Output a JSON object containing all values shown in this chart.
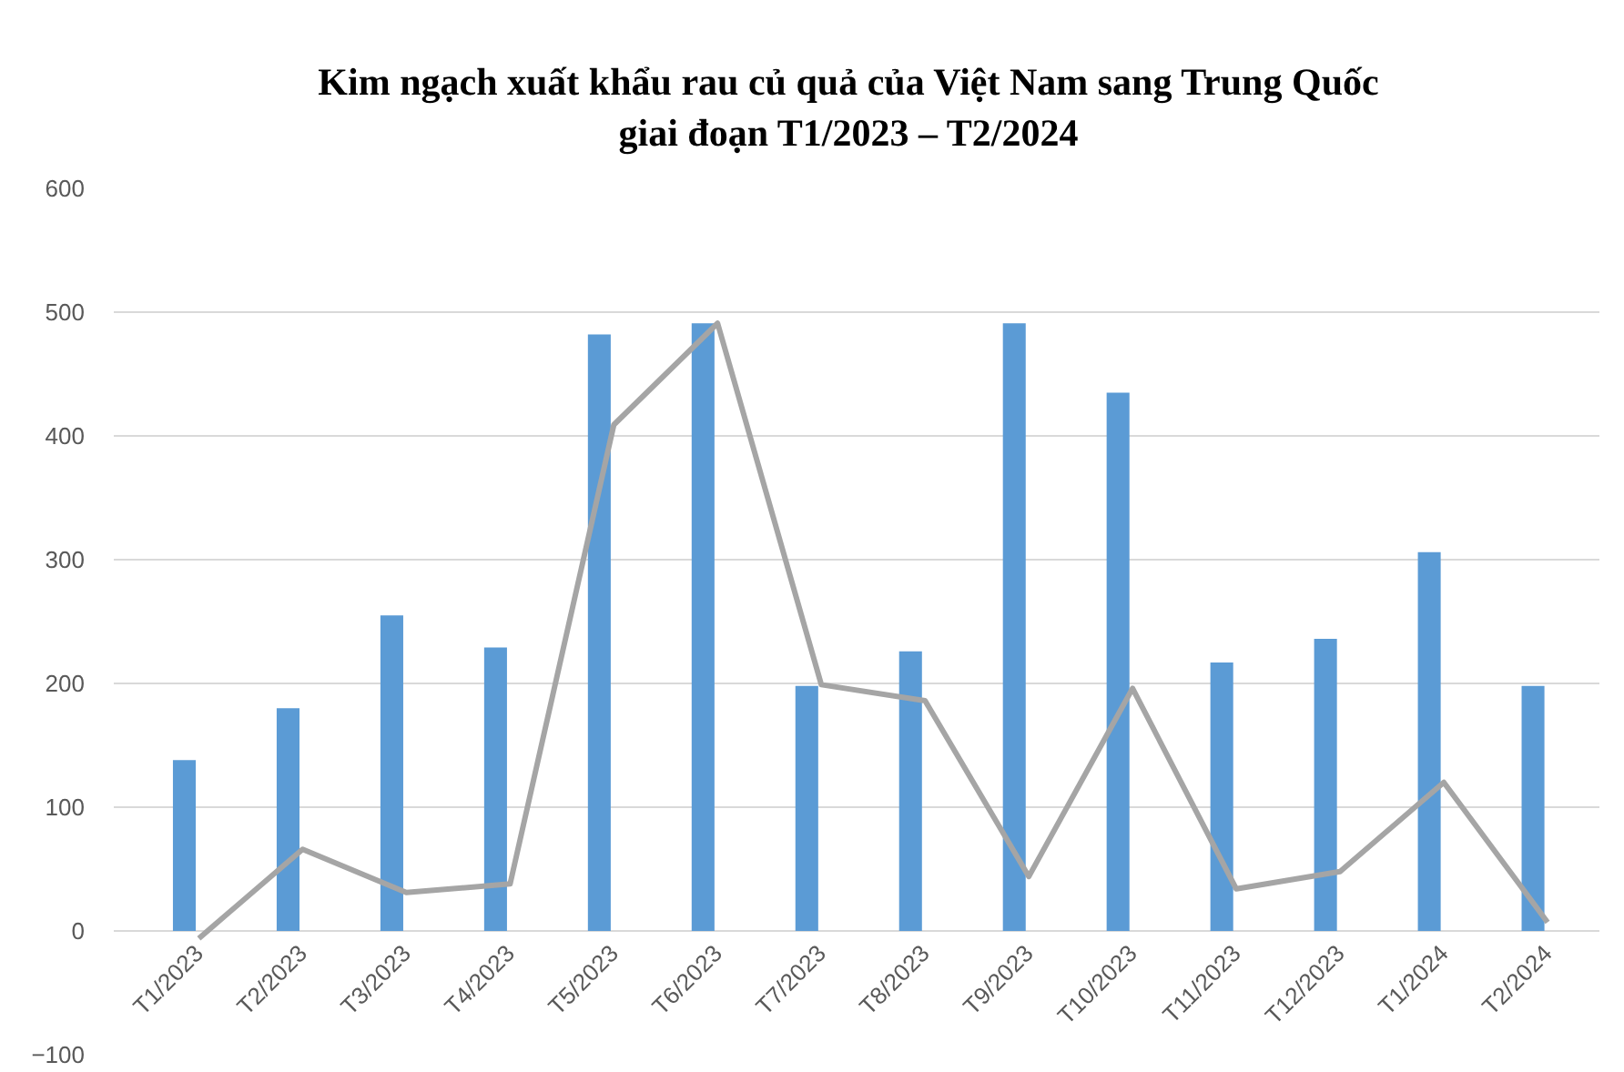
{
  "chart_data": {
    "type": "bar",
    "title": "Kim ngạch xuất khẩu rau củ quả của Việt Nam sang Trung Quốc\ngiai đoạn T1/2023 – T2/2024",
    "categories": [
      "T1/2023",
      "T2/2023",
      "T3/2023",
      "T4/2023",
      "T5/2023",
      "T6/2023",
      "T7/2023",
      "T8/2023",
      "T9/2023",
      "T10/2023",
      "T11/2023",
      "T12/2023",
      "T1/2024",
      "T2/2024"
    ],
    "series": [
      {
        "color": "#5b9bd5",
        "values": [
          138,
          180,
          255,
          229,
          482,
          491,
          198,
          226,
          491,
          435,
          217,
          236,
          306,
          198
        ]
      },
      {
        "type": "line",
        "color": "#a5a5a5",
        "values": [
          -6,
          66,
          31,
          38,
          409,
          491,
          199,
          186,
          44,
          196,
          34,
          48,
          120,
          7
        ]
      }
    ],
    "ylim": [
      -100,
      600
    ],
    "yticks": [
      -100,
      0,
      100,
      200,
      300,
      400,
      500,
      600
    ],
    "grid": "y"
  }
}
